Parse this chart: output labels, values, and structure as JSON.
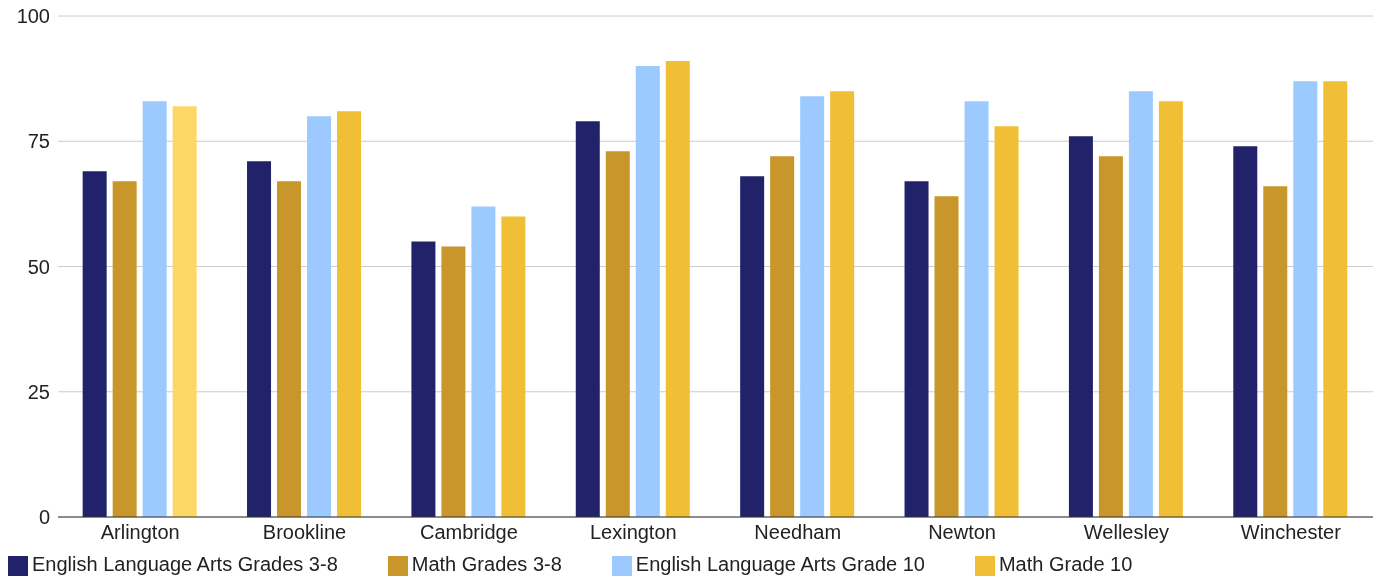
{
  "chart_data": {
    "type": "bar",
    "categories": [
      "Arlington",
      "Brookline",
      "Cambridge",
      "Lexington",
      "Needham",
      "Newton",
      "Wellesley",
      "Winchester"
    ],
    "series": [
      {
        "name": "English Language Arts Grades 3-8",
        "color": "#22226a",
        "values": [
          69,
          71,
          55,
          79,
          68,
          67,
          76,
          74
        ]
      },
      {
        "name": "Math Grades 3-8",
        "color": "#c8962a",
        "values": [
          67,
          67,
          54,
          73,
          72,
          64,
          72,
          66
        ]
      },
      {
        "name": "English Language Arts Grade 10",
        "color": "#9ccaff",
        "values": [
          83,
          80,
          62,
          90,
          84,
          83,
          85,
          87
        ]
      },
      {
        "name": "Math Grade 10",
        "color": "#f0bf36",
        "colors": [
          "#fdd766",
          "#f0bf36",
          "#f0bf36",
          "#f0bf36",
          "#f0bf36",
          "#f0bf36",
          "#f0bf36",
          "#f0bf36"
        ],
        "values": [
          82,
          81,
          60,
          91,
          85,
          78,
          83,
          87
        ]
      }
    ],
    "ylim": [
      0,
      100
    ],
    "yticks": [
      0,
      25,
      50,
      75,
      100
    ],
    "grid": "y",
    "legend": "bottom"
  }
}
